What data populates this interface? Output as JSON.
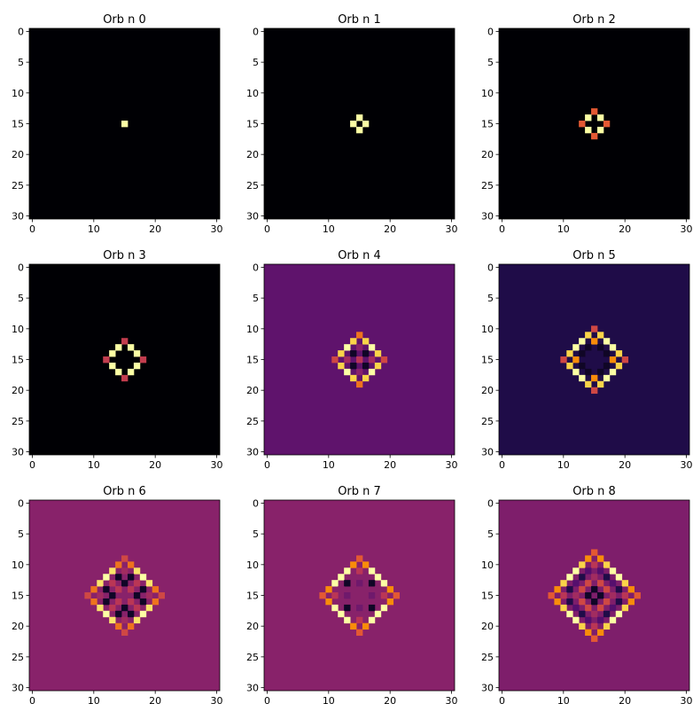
{
  "figure": {
    "colormap": "inferno",
    "background": "#ffffff"
  },
  "chart_data": [
    {
      "type": "heatmap",
      "title": "Orb n 0",
      "xlim": [
        -0.5,
        30.5
      ],
      "ylim": [
        30.5,
        -0.5
      ],
      "xticks": [
        0,
        10,
        20,
        30
      ],
      "yticks": [
        0,
        5,
        10,
        15,
        20,
        25,
        30
      ],
      "background_level": 0.0,
      "cells": [
        [
          15,
          15,
          0.95
        ]
      ]
    },
    {
      "type": "heatmap",
      "title": "Orb n 1",
      "xlim": [
        -0.5,
        30.5
      ],
      "ylim": [
        30.5,
        -0.5
      ],
      "xticks": [
        0,
        10,
        20,
        30
      ],
      "yticks": [
        0,
        5,
        10,
        15,
        20,
        25,
        30
      ],
      "background_level": 0.0,
      "cells": [
        [
          15,
          14,
          0.97
        ],
        [
          14,
          15,
          0.97
        ],
        [
          16,
          15,
          0.97
        ],
        [
          15,
          16,
          0.97
        ]
      ]
    },
    {
      "type": "heatmap",
      "title": "Orb n 2",
      "xlim": [
        -0.5,
        30.5
      ],
      "ylim": [
        30.5,
        -0.5
      ],
      "xticks": [
        0,
        10,
        20,
        30
      ],
      "yticks": [
        0,
        5,
        10,
        15,
        20,
        25,
        30
      ],
      "background_level": 0.0,
      "cells": [
        [
          15,
          13,
          0.5
        ],
        [
          14,
          14,
          0.97
        ],
        [
          16,
          14,
          0.97
        ],
        [
          13,
          15,
          0.5
        ],
        [
          17,
          15,
          0.5
        ],
        [
          14,
          16,
          0.97
        ],
        [
          16,
          16,
          0.97
        ],
        [
          15,
          17,
          0.5
        ]
      ]
    },
    {
      "type": "heatmap",
      "title": "Orb n 3",
      "xlim": [
        -0.5,
        30.5
      ],
      "ylim": [
        30.5,
        -0.5
      ],
      "xticks": [
        0,
        10,
        20,
        30
      ],
      "yticks": [
        0,
        5,
        10,
        15,
        20,
        25,
        30
      ],
      "background_level": 0.0,
      "cells": [
        [
          15,
          12,
          0.42
        ],
        [
          14,
          13,
          0.97
        ],
        [
          16,
          13,
          0.97
        ],
        [
          13,
          14,
          0.97
        ],
        [
          17,
          14,
          0.97
        ],
        [
          12,
          15,
          0.42
        ],
        [
          18,
          15,
          0.42
        ],
        [
          13,
          16,
          0.97
        ],
        [
          17,
          16,
          0.97
        ],
        [
          14,
          17,
          0.97
        ],
        [
          16,
          17,
          0.97
        ],
        [
          15,
          18,
          0.42
        ]
      ]
    },
    {
      "type": "heatmap",
      "title": "Orb n 4",
      "xlim": [
        -0.5,
        30.5
      ],
      "ylim": [
        30.5,
        -0.5
      ],
      "xticks": [
        0,
        10,
        20,
        30
      ],
      "yticks": [
        0,
        5,
        10,
        15,
        20,
        25,
        30
      ],
      "background_level": 0.22,
      "cells": [
        [
          15,
          11,
          0.55
        ],
        [
          14,
          12,
          0.72
        ],
        [
          16,
          12,
          0.72
        ],
        [
          13,
          13,
          0.85
        ],
        [
          15,
          13,
          0.3
        ],
        [
          17,
          13,
          0.85
        ],
        [
          12,
          14,
          0.72
        ],
        [
          14,
          14,
          0.05
        ],
        [
          16,
          14,
          0.05
        ],
        [
          18,
          14,
          0.72
        ],
        [
          11,
          15,
          0.45
        ],
        [
          13,
          15,
          0.35
        ],
        [
          15,
          15,
          0.4
        ],
        [
          17,
          15,
          0.35
        ],
        [
          19,
          15,
          0.45
        ],
        [
          12,
          16,
          0.72
        ],
        [
          14,
          16,
          0.05
        ],
        [
          16,
          16,
          0.05
        ],
        [
          18,
          16,
          0.72
        ],
        [
          13,
          17,
          0.85
        ],
        [
          15,
          17,
          0.3
        ],
        [
          17,
          17,
          0.85
        ],
        [
          14,
          18,
          0.72
        ],
        [
          16,
          18,
          0.72
        ],
        [
          15,
          19,
          0.55
        ]
      ]
    },
    {
      "type": "heatmap",
      "title": "Orb n 5",
      "xlim": [
        -0.5,
        30.5
      ],
      "ylim": [
        30.5,
        -0.5
      ],
      "xticks": [
        0,
        10,
        20,
        30
      ],
      "yticks": [
        0,
        5,
        10,
        15,
        20,
        25,
        30
      ],
      "background_level": 0.1,
      "cells": [
        [
          15,
          10,
          0.45
        ],
        [
          14,
          11,
          0.72
        ],
        [
          16,
          11,
          0.72
        ],
        [
          13,
          12,
          0.97
        ],
        [
          15,
          12,
          0.6
        ],
        [
          17,
          12,
          0.97
        ],
        [
          12,
          13,
          0.97
        ],
        [
          14,
          13,
          0.05
        ],
        [
          16,
          13,
          0.05
        ],
        [
          18,
          13,
          0.97
        ],
        [
          11,
          14,
          0.72
        ],
        [
          13,
          14,
          0.05
        ],
        [
          17,
          14,
          0.05
        ],
        [
          19,
          14,
          0.72
        ],
        [
          10,
          15,
          0.45
        ],
        [
          12,
          15,
          0.6
        ],
        [
          18,
          15,
          0.6
        ],
        [
          20,
          15,
          0.45
        ],
        [
          11,
          16,
          0.72
        ],
        [
          13,
          16,
          0.05
        ],
        [
          17,
          16,
          0.05
        ],
        [
          19,
          16,
          0.72
        ],
        [
          12,
          17,
          0.97
        ],
        [
          14,
          17,
          0.05
        ],
        [
          16,
          17,
          0.05
        ],
        [
          18,
          17,
          0.97
        ],
        [
          13,
          18,
          0.97
        ],
        [
          15,
          18,
          0.6
        ],
        [
          17,
          18,
          0.97
        ],
        [
          14,
          19,
          0.72
        ],
        [
          16,
          19,
          0.72
        ],
        [
          15,
          20,
          0.45
        ]
      ]
    },
    {
      "type": "heatmap",
      "title": "Orb n 6",
      "xlim": [
        -0.5,
        30.5
      ],
      "ylim": [
        30.5,
        -0.5
      ],
      "xticks": [
        0,
        10,
        20,
        30
      ],
      "yticks": [
        0,
        5,
        10,
        15,
        20,
        25,
        30
      ],
      "background_level": 0.3,
      "cells": [
        [
          15,
          9,
          0.45
        ],
        [
          14,
          10,
          0.55
        ],
        [
          16,
          10,
          0.55
        ],
        [
          13,
          11,
          0.75
        ],
        [
          15,
          11,
          0.35
        ],
        [
          17,
          11,
          0.75
        ],
        [
          12,
          12,
          0.97
        ],
        [
          14,
          12,
          0.05
        ],
        [
          16,
          12,
          0.05
        ],
        [
          18,
          12,
          0.97
        ],
        [
          11,
          13,
          0.75
        ],
        [
          13,
          13,
          0.4
        ],
        [
          15,
          13,
          0.05
        ],
        [
          17,
          13,
          0.4
        ],
        [
          19,
          13,
          0.75
        ],
        [
          10,
          14,
          0.55
        ],
        [
          12,
          14,
          0.05
        ],
        [
          14,
          14,
          0.4
        ],
        [
          16,
          14,
          0.4
        ],
        [
          18,
          14,
          0.05
        ],
        [
          20,
          14,
          0.55
        ],
        [
          9,
          15,
          0.45
        ],
        [
          11,
          15,
          0.35
        ],
        [
          13,
          15,
          0.05
        ],
        [
          17,
          15,
          0.05
        ],
        [
          19,
          15,
          0.35
        ],
        [
          21,
          15,
          0.45
        ],
        [
          10,
          16,
          0.55
        ],
        [
          12,
          16,
          0.05
        ],
        [
          14,
          16,
          0.4
        ],
        [
          16,
          16,
          0.4
        ],
        [
          18,
          16,
          0.05
        ],
        [
          20,
          16,
          0.55
        ],
        [
          11,
          17,
          0.75
        ],
        [
          13,
          17,
          0.4
        ],
        [
          15,
          17,
          0.05
        ],
        [
          17,
          17,
          0.4
        ],
        [
          19,
          17,
          0.75
        ],
        [
          12,
          18,
          0.97
        ],
        [
          14,
          18,
          0.05
        ],
        [
          16,
          18,
          0.05
        ],
        [
          18,
          18,
          0.97
        ],
        [
          13,
          19,
          0.75
        ],
        [
          15,
          19,
          0.35
        ],
        [
          17,
          19,
          0.75
        ],
        [
          14,
          20,
          0.55
        ],
        [
          16,
          20,
          0.55
        ],
        [
          15,
          21,
          0.45
        ]
      ]
    },
    {
      "type": "heatmap",
      "title": "Orb n 7",
      "xlim": [
        -0.5,
        30.5
      ],
      "ylim": [
        30.5,
        -0.5
      ],
      "xticks": [
        0,
        10,
        20,
        30
      ],
      "yticks": [
        0,
        5,
        10,
        15,
        20,
        25,
        30
      ],
      "background_level": 0.3,
      "cells": [
        [
          15,
          9,
          0.5
        ],
        [
          14,
          10,
          0.6
        ],
        [
          16,
          10,
          0.6
        ],
        [
          13,
          11,
          0.85
        ],
        [
          15,
          11,
          0.4
        ],
        [
          17,
          11,
          0.85
        ],
        [
          12,
          12,
          0.97
        ],
        [
          14,
          12,
          0.3
        ],
        [
          16,
          12,
          0.3
        ],
        [
          18,
          12,
          0.97
        ],
        [
          11,
          13,
          0.85
        ],
        [
          13,
          13,
          0.05
        ],
        [
          15,
          13,
          0.25
        ],
        [
          17,
          13,
          0.05
        ],
        [
          19,
          13,
          0.85
        ],
        [
          10,
          14,
          0.6
        ],
        [
          12,
          14,
          0.3
        ],
        [
          18,
          14,
          0.3
        ],
        [
          20,
          14,
          0.6
        ],
        [
          9,
          15,
          0.5
        ],
        [
          11,
          15,
          0.4
        ],
        [
          13,
          15,
          0.25
        ],
        [
          17,
          15,
          0.25
        ],
        [
          19,
          15,
          0.4
        ],
        [
          21,
          15,
          0.5
        ],
        [
          10,
          16,
          0.6
        ],
        [
          12,
          16,
          0.3
        ],
        [
          18,
          16,
          0.3
        ],
        [
          20,
          16,
          0.6
        ],
        [
          11,
          17,
          0.85
        ],
        [
          13,
          17,
          0.05
        ],
        [
          15,
          17,
          0.25
        ],
        [
          17,
          17,
          0.05
        ],
        [
          19,
          17,
          0.85
        ],
        [
          12,
          18,
          0.97
        ],
        [
          14,
          18,
          0.3
        ],
        [
          16,
          18,
          0.3
        ],
        [
          18,
          18,
          0.97
        ],
        [
          13,
          19,
          0.85
        ],
        [
          15,
          19,
          0.4
        ],
        [
          17,
          19,
          0.85
        ],
        [
          14,
          20,
          0.6
        ],
        [
          16,
          20,
          0.6
        ],
        [
          15,
          21,
          0.5
        ]
      ]
    },
    {
      "type": "heatmap",
      "title": "Orb n 8",
      "xlim": [
        -0.5,
        30.5
      ],
      "ylim": [
        30.5,
        -0.5
      ],
      "xticks": [
        0,
        10,
        20,
        30
      ],
      "yticks": [
        0,
        5,
        10,
        15,
        20,
        25,
        30
      ],
      "background_level": 0.28,
      "cells": [
        [
          15,
          8,
          0.5
        ],
        [
          14,
          9,
          0.6
        ],
        [
          16,
          9,
          0.6
        ],
        [
          13,
          10,
          0.72
        ],
        [
          15,
          10,
          0.4
        ],
        [
          17,
          10,
          0.72
        ],
        [
          12,
          11,
          0.85
        ],
        [
          14,
          11,
          0.2
        ],
        [
          16,
          11,
          0.2
        ],
        [
          18,
          11,
          0.85
        ],
        [
          11,
          12,
          0.85
        ],
        [
          13,
          12,
          0.1
        ],
        [
          15,
          12,
          0.35
        ],
        [
          17,
          12,
          0.1
        ],
        [
          19,
          12,
          0.85
        ],
        [
          10,
          13,
          0.72
        ],
        [
          12,
          13,
          0.2
        ],
        [
          14,
          13,
          0.45
        ],
        [
          16,
          13,
          0.45
        ],
        [
          18,
          13,
          0.2
        ],
        [
          20,
          13,
          0.72
        ],
        [
          9,
          14,
          0.6
        ],
        [
          11,
          14,
          0.1
        ],
        [
          13,
          14,
          0.45
        ],
        [
          15,
          14,
          0.05
        ],
        [
          17,
          14,
          0.45
        ],
        [
          19,
          14,
          0.1
        ],
        [
          21,
          14,
          0.6
        ],
        [
          8,
          15,
          0.5
        ],
        [
          10,
          15,
          0.4
        ],
        [
          12,
          15,
          0.35
        ],
        [
          14,
          15,
          0.05
        ],
        [
          16,
          15,
          0.05
        ],
        [
          18,
          15,
          0.35
        ],
        [
          20,
          15,
          0.4
        ],
        [
          22,
          15,
          0.5
        ],
        [
          9,
          16,
          0.6
        ],
        [
          11,
          16,
          0.1
        ],
        [
          13,
          16,
          0.45
        ],
        [
          15,
          16,
          0.05
        ],
        [
          17,
          16,
          0.45
        ],
        [
          19,
          16,
          0.1
        ],
        [
          21,
          16,
          0.6
        ],
        [
          10,
          17,
          0.72
        ],
        [
          12,
          17,
          0.2
        ],
        [
          14,
          17,
          0.45
        ],
        [
          16,
          17,
          0.45
        ],
        [
          18,
          17,
          0.2
        ],
        [
          20,
          17,
          0.72
        ],
        [
          11,
          18,
          0.85
        ],
        [
          13,
          18,
          0.1
        ],
        [
          15,
          18,
          0.35
        ],
        [
          17,
          18,
          0.1
        ],
        [
          19,
          18,
          0.85
        ],
        [
          12,
          19,
          0.85
        ],
        [
          14,
          19,
          0.2
        ],
        [
          16,
          19,
          0.2
        ],
        [
          18,
          19,
          0.85
        ],
        [
          13,
          20,
          0.72
        ],
        [
          15,
          20,
          0.4
        ],
        [
          17,
          20,
          0.72
        ],
        [
          14,
          21,
          0.6
        ],
        [
          16,
          21,
          0.6
        ],
        [
          15,
          22,
          0.5
        ]
      ]
    }
  ]
}
